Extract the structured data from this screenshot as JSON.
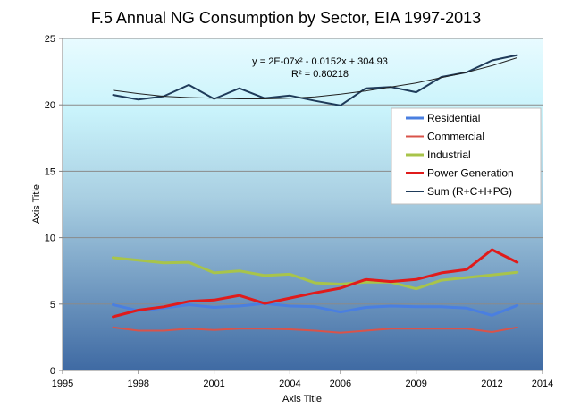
{
  "chart_data": {
    "type": "line",
    "title": "F.5 Annual NG Consumption by Sector, EIA 1997-2013",
    "xlabel": "Axis Title",
    "ylabel": "Axis Title",
    "xlim": [
      1995,
      2014
    ],
    "ylim": [
      0,
      25
    ],
    "x_ticks": [
      1995,
      1998,
      2001,
      2004,
      2006,
      2009,
      2012,
      2014
    ],
    "y_ticks": [
      0,
      5,
      10,
      15,
      20,
      25
    ],
    "grid": true,
    "legend_position": "right",
    "x": [
      1997,
      1998,
      1999,
      2000,
      2001,
      2002,
      2003,
      2004,
      2005,
      2006,
      2007,
      2008,
      2009,
      2010,
      2011,
      2012,
      2013
    ],
    "series": [
      {
        "name": "Residential",
        "color": "#4a7fe0",
        "width": 3,
        "values": [
          4.95,
          4.5,
          4.7,
          4.95,
          4.75,
          4.85,
          5.05,
          4.85,
          4.8,
          4.4,
          4.75,
          4.85,
          4.8,
          4.8,
          4.7,
          4.15,
          4.9
        ]
      },
      {
        "name": "Commercial",
        "color": "#d9534a",
        "width": 2,
        "values": [
          3.25,
          3.0,
          3.0,
          3.15,
          3.05,
          3.15,
          3.15,
          3.1,
          3.0,
          2.85,
          3.0,
          3.15,
          3.15,
          3.15,
          3.15,
          2.9,
          3.25
        ]
      },
      {
        "name": "Industrial",
        "color": "#a8c44a",
        "width": 3,
        "values": [
          8.5,
          8.3,
          8.1,
          8.15,
          7.35,
          7.5,
          7.15,
          7.25,
          6.6,
          6.5,
          6.65,
          6.65,
          6.15,
          6.8,
          7.0,
          7.2,
          7.4
        ]
      },
      {
        "name": "Power Generation",
        "color": "#e01b1b",
        "width": 3,
        "values": [
          4.05,
          4.55,
          4.8,
          5.2,
          5.3,
          5.65,
          5.05,
          5.45,
          5.85,
          6.2,
          6.85,
          6.7,
          6.85,
          7.35,
          7.6,
          9.1,
          8.15
        ]
      },
      {
        "name": "Sum (R+C+I+PG)",
        "color": "#1f3b5a",
        "width": 2,
        "values": [
          20.75,
          20.4,
          20.65,
          21.5,
          20.45,
          21.25,
          20.5,
          20.7,
          20.3,
          19.95,
          21.25,
          21.35,
          20.95,
          22.1,
          22.45,
          23.35,
          23.75
        ]
      }
    ],
    "trendline": {
      "of_series": "Sum (R+C+I+PG)",
      "color": "#222222",
      "equation": "y = 2E-07x² - 0.0152x + 304.93",
      "r_squared": "R² = 0.80218",
      "values": [
        21.1,
        20.85,
        20.65,
        20.55,
        20.5,
        20.45,
        20.45,
        20.5,
        20.6,
        20.8,
        21.05,
        21.35,
        21.65,
        22.05,
        22.45,
        22.95,
        23.55
      ]
    },
    "plot_background": {
      "top": "#e8fbff",
      "bottom": "#3f6aa3"
    }
  }
}
